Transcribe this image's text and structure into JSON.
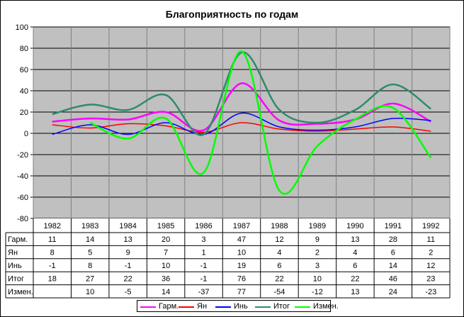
{
  "chart_data": {
    "type": "line",
    "title": "Благоприятность по годам",
    "categories": [
      "1982",
      "1983",
      "1984",
      "1985",
      "1986",
      "1987",
      "1988",
      "1989",
      "1990",
      "1991",
      "1992"
    ],
    "ylim": [
      -80,
      100
    ],
    "yticks": [
      -80,
      -60,
      -40,
      -20,
      0,
      20,
      40,
      60,
      80,
      100
    ],
    "grid": true,
    "legend_position": "bottom",
    "series": [
      {
        "name": "Гарм.",
        "color": "#ff00ff",
        "values": [
          11,
          14,
          13,
          20,
          3,
          47,
          12,
          9,
          13,
          28,
          11
        ]
      },
      {
        "name": "Ян",
        "color": "#ff0000",
        "values": [
          8,
          5,
          9,
          7,
          1,
          10,
          4,
          2,
          4,
          6,
          2
        ]
      },
      {
        "name": "Инь",
        "color": "#0000ff",
        "values": [
          -1,
          8,
          -1,
          10,
          -1,
          19,
          6,
          3,
          6,
          14,
          12
        ]
      },
      {
        "name": "Итог",
        "color": "#2e8b6a",
        "values": [
          18,
          27,
          22,
          36,
          -1,
          76,
          22,
          10,
          22,
          46,
          23
        ]
      },
      {
        "name": "Измен.",
        "color": "#00ff00",
        "values": [
          null,
          10,
          -5,
          14,
          -37,
          77,
          -54,
          -12,
          13,
          24,
          -23
        ]
      }
    ]
  }
}
